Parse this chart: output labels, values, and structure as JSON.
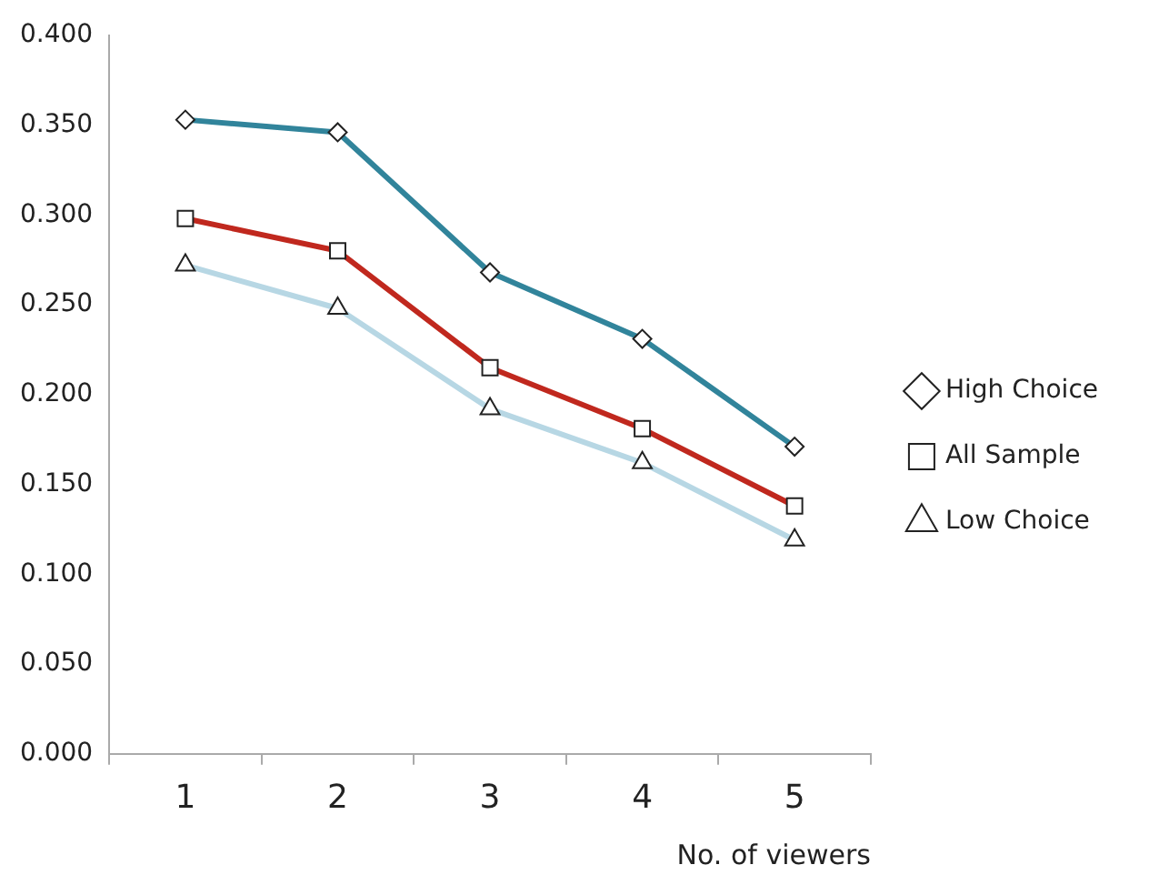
{
  "chart_data": {
    "type": "line",
    "xlabel": "No. of viewers",
    "categories": [
      "1",
      "2",
      "3",
      "4",
      "5"
    ],
    "series": [
      {
        "name": "High Choice",
        "color": "#31849b",
        "marker": "diamond",
        "values": [
          0.353,
          0.346,
          0.268,
          0.231,
          0.171
        ]
      },
      {
        "name": "All Sample",
        "color": "#c0281e",
        "marker": "square",
        "values": [
          0.298,
          0.28,
          0.215,
          0.181,
          0.138
        ]
      },
      {
        "name": "Low Choice",
        "color": "#b7d7e4",
        "marker": "triangle",
        "values": [
          0.272,
          0.248,
          0.192,
          0.162,
          0.119
        ]
      }
    ],
    "ylim": [
      0,
      0.4
    ],
    "yticks": [
      {
        "value": 0,
        "label": "0.000"
      },
      {
        "value": 0.05,
        "label": "0.050"
      },
      {
        "value": 0.1,
        "label": "0.100"
      },
      {
        "value": 0.15,
        "label": "0.150"
      },
      {
        "value": 0.2,
        "label": "0.200"
      },
      {
        "value": 0.25,
        "label": "0.250"
      },
      {
        "value": 0.3,
        "label": "0.300"
      },
      {
        "value": 0.35,
        "label": "0.350"
      },
      {
        "value": 0.4,
        "label": "0.400"
      }
    ],
    "grid": false,
    "legend": "right",
    "line_style": "solid"
  }
}
